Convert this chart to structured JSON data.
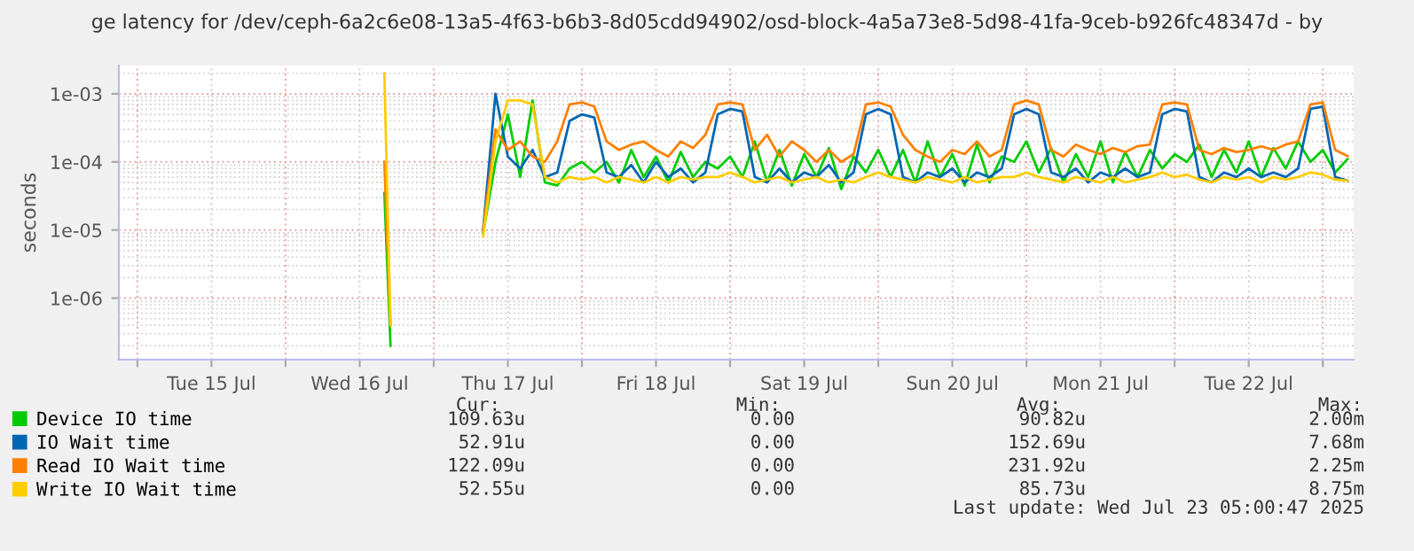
{
  "chart_data": {
    "type": "line",
    "title": "ge latency for /dev/ceph-6a2c6e08-13a5-4f63-b6b3-8d05cdd94902/osd-block-4a5a73e8-5d98-41fa-9ceb-b926fc48347d - by",
    "ylabel": "seconds",
    "log": "y",
    "grid": true,
    "legend": "bottom",
    "marker": "none",
    "line_style": "solid",
    "xlim": [
      "2025-07-14T21:00",
      "2025-07-23T05:00"
    ],
    "xticks": [
      {
        "value": "2025-07-15T00:00",
        "label": null
      },
      {
        "value": "2025-07-15T12:00",
        "label": "Tue 15 Jul"
      },
      {
        "value": "2025-07-16T00:00",
        "label": null
      },
      {
        "value": "2025-07-16T12:00",
        "label": "Wed 16 Jul"
      },
      {
        "value": "2025-07-17T00:00",
        "label": null
      },
      {
        "value": "2025-07-17T12:00",
        "label": "Thu 17 Jul"
      },
      {
        "value": "2025-07-18T00:00",
        "label": null
      },
      {
        "value": "2025-07-18T12:00",
        "label": "Fri 18 Jul"
      },
      {
        "value": "2025-07-19T00:00",
        "label": null
      },
      {
        "value": "2025-07-19T12:00",
        "label": "Sat 19 Jul"
      },
      {
        "value": "2025-07-20T00:00",
        "label": null
      },
      {
        "value": "2025-07-20T12:00",
        "label": "Sun 20 Jul"
      },
      {
        "value": "2025-07-21T00:00",
        "label": null
      },
      {
        "value": "2025-07-21T12:00",
        "label": "Mon 21 Jul"
      },
      {
        "value": "2025-07-22T00:00",
        "label": null
      },
      {
        "value": "2025-07-22T12:00",
        "label": "Tue 22 Jul"
      },
      {
        "value": "2025-07-23T00:00",
        "label": null
      }
    ],
    "ylim": [
      1.25e-07,
      0.0026
    ],
    "yticks": [
      {
        "value": 1e-06,
        "label": "1e-06"
      },
      {
        "value": 1e-05,
        "label": "1e-05"
      },
      {
        "value": 0.0001,
        "label": "1e-04"
      },
      {
        "value": 0.001,
        "label": "1e-03"
      }
    ],
    "x": [
      "2025-07-16T16:00",
      "2025-07-16T17:00",
      "2025-07-16T18:00",
      "2025-07-17T08:00",
      "2025-07-17T10:00",
      "2025-07-17T12:00",
      "2025-07-17T14:00",
      "2025-07-17T16:00",
      "2025-07-17T18:00",
      "2025-07-17T20:00",
      "2025-07-17T22:00",
      "2025-07-18T00:00",
      "2025-07-18T02:00",
      "2025-07-18T04:00",
      "2025-07-18T06:00",
      "2025-07-18T08:00",
      "2025-07-18T10:00",
      "2025-07-18T12:00",
      "2025-07-18T14:00",
      "2025-07-18T16:00",
      "2025-07-18T18:00",
      "2025-07-18T20:00",
      "2025-07-18T22:00",
      "2025-07-19T00:00",
      "2025-07-19T02:00",
      "2025-07-19T04:00",
      "2025-07-19T06:00",
      "2025-07-19T08:00",
      "2025-07-19T10:00",
      "2025-07-19T12:00",
      "2025-07-19T14:00",
      "2025-07-19T16:00",
      "2025-07-19T18:00",
      "2025-07-19T20:00",
      "2025-07-19T22:00",
      "2025-07-20T00:00",
      "2025-07-20T02:00",
      "2025-07-20T04:00",
      "2025-07-20T06:00",
      "2025-07-20T08:00",
      "2025-07-20T10:00",
      "2025-07-20T12:00",
      "2025-07-20T14:00",
      "2025-07-20T16:00",
      "2025-07-20T18:00",
      "2025-07-20T20:00",
      "2025-07-20T22:00",
      "2025-07-21T00:00",
      "2025-07-21T02:00",
      "2025-07-21T04:00",
      "2025-07-21T06:00",
      "2025-07-21T08:00",
      "2025-07-21T10:00",
      "2025-07-21T12:00",
      "2025-07-21T14:00",
      "2025-07-21T16:00",
      "2025-07-21T18:00",
      "2025-07-21T20:00",
      "2025-07-21T22:00",
      "2025-07-22T00:00",
      "2025-07-22T02:00",
      "2025-07-22T04:00",
      "2025-07-22T06:00",
      "2025-07-22T08:00",
      "2025-07-22T10:00",
      "2025-07-22T12:00",
      "2025-07-22T14:00",
      "2025-07-22T16:00",
      "2025-07-22T18:00",
      "2025-07-22T20:00",
      "2025-07-22T22:00",
      "2025-07-23T00:00",
      "2025-07-23T02:00",
      "2025-07-23T04:00"
    ],
    "series": [
      {
        "name": "Device IO time",
        "color": "#00cc00",
        "values": [
          3.5e-05,
          2e-07,
          null,
          9e-06,
          0.0001,
          0.0005,
          6e-05,
          0.0008,
          5e-05,
          4.5e-05,
          8e-05,
          0.0001,
          7e-05,
          0.0001,
          5e-05,
          0.00015,
          6e-05,
          0.00012,
          5e-05,
          0.00014,
          6e-05,
          0.0001,
          8e-05,
          0.00012,
          6e-05,
          0.0002,
          5e-05,
          0.00015,
          4.5e-05,
          0.00013,
          6e-05,
          0.00016,
          4e-05,
          0.00012,
          7e-05,
          0.00015,
          6e-05,
          0.00015,
          5e-05,
          0.0002,
          6e-05,
          0.00013,
          4.5e-05,
          0.00018,
          5e-05,
          0.00012,
          0.0001,
          0.0002,
          7e-05,
          0.00016,
          5e-05,
          0.00013,
          6e-05,
          0.0002,
          5e-05,
          0.00014,
          6e-05,
          0.00015,
          8e-05,
          0.00013,
          0.0001,
          0.00018,
          6e-05,
          0.00015,
          7e-05,
          0.0002,
          6e-05,
          0.00016,
          8e-05,
          0.0002,
          0.0001,
          0.00015,
          7e-05,
          0.00011
        ]
      },
      {
        "name": "IO Wait time",
        "color": "#0066b3",
        "values": [
          null,
          null,
          null,
          1e-05,
          0.001,
          0.00012,
          8e-05,
          0.00015,
          6e-05,
          7e-05,
          0.0004,
          0.0005,
          0.00045,
          7e-05,
          6e-05,
          9e-05,
          5e-05,
          0.0001,
          6e-05,
          8e-05,
          5e-05,
          7e-05,
          0.0005,
          0.0006,
          0.00055,
          6e-05,
          5e-05,
          8e-05,
          5e-05,
          7e-05,
          6e-05,
          9e-05,
          5e-05,
          7e-05,
          0.0005,
          0.0006,
          0.0005,
          6e-05,
          5e-05,
          7e-05,
          6e-05,
          8e-05,
          5e-05,
          7e-05,
          6e-05,
          8e-05,
          0.0005,
          0.0006,
          0.0005,
          7e-05,
          6e-05,
          8e-05,
          5e-05,
          7e-05,
          6e-05,
          8e-05,
          6e-05,
          7e-05,
          0.0005,
          0.0006,
          0.00055,
          6e-05,
          5e-05,
          7e-05,
          6e-05,
          8e-05,
          6e-05,
          7e-05,
          6e-05,
          8e-05,
          0.0006,
          0.00065,
          6e-05,
          5.3e-05
        ]
      },
      {
        "name": "Read IO Wait time",
        "color": "#ff8000",
        "values": [
          0.0001,
          4e-07,
          null,
          1e-05,
          0.0003,
          0.00015,
          0.0002,
          0.00012,
          0.0001,
          0.0002,
          0.0007,
          0.00075,
          0.00065,
          0.0002,
          0.00015,
          0.00018,
          0.0002,
          0.00015,
          0.00012,
          0.0002,
          0.00016,
          0.00025,
          0.0007,
          0.00075,
          0.0007,
          0.00015,
          0.00025,
          0.00012,
          0.0002,
          0.00015,
          0.0001,
          0.00015,
          0.0001,
          0.00013,
          0.0007,
          0.00075,
          0.00065,
          0.00025,
          0.00015,
          0.00012,
          0.0001,
          0.00015,
          0.00013,
          0.0002,
          0.00012,
          0.00015,
          0.0007,
          0.0008,
          0.0007,
          0.00015,
          0.00012,
          0.00018,
          0.00015,
          0.00013,
          0.00016,
          0.00014,
          0.00017,
          0.00018,
          0.0007,
          0.00075,
          0.0007,
          0.00015,
          0.00013,
          0.00016,
          0.00014,
          0.00015,
          0.00017,
          0.00015,
          0.00018,
          0.0002,
          0.0007,
          0.00075,
          0.00015,
          0.000122
        ]
      },
      {
        "name": "Write IO Wait time",
        "color": "#ffcc00",
        "values": [
          0.002,
          4e-07,
          null,
          8e-06,
          0.0002,
          0.0008,
          0.0008,
          0.0007,
          6e-05,
          5e-05,
          6e-05,
          5.5e-05,
          6e-05,
          5e-05,
          6e-05,
          5.5e-05,
          5e-05,
          6e-05,
          5e-05,
          6e-05,
          5.5e-05,
          6e-05,
          6e-05,
          7e-05,
          6e-05,
          5e-05,
          5.5e-05,
          6e-05,
          5e-05,
          5.5e-05,
          6e-05,
          5e-05,
          5.5e-05,
          5e-05,
          6e-05,
          7e-05,
          6e-05,
          5.5e-05,
          5e-05,
          6e-05,
          5.5e-05,
          5e-05,
          6e-05,
          5e-05,
          5.5e-05,
          6e-05,
          6e-05,
          7e-05,
          6e-05,
          5.5e-05,
          5e-05,
          6e-05,
          5.5e-05,
          5e-05,
          6e-05,
          5e-05,
          5.5e-05,
          6e-05,
          7e-05,
          6e-05,
          6.5e-05,
          5.5e-05,
          5e-05,
          6e-05,
          5.5e-05,
          6e-05,
          5e-05,
          6e-05,
          5.5e-05,
          6e-05,
          7e-05,
          6.5e-05,
          5.5e-05,
          5.3e-05
        ]
      }
    ],
    "annotations": [
      "Cur:",
      "Min:",
      "Avg:",
      "Max:",
      "109.63u",
      "0.00",
      "90.82u",
      "2.00m",
      "52.91u",
      "0.00",
      "152.69u",
      "7.68m",
      "122.09u",
      "0.00",
      "231.92u",
      "2.25m",
      "52.55u",
      "0.00",
      "85.73u",
      "8.75m",
      "Last update: Wed Jul 23 05:00:47 2025"
    ]
  }
}
